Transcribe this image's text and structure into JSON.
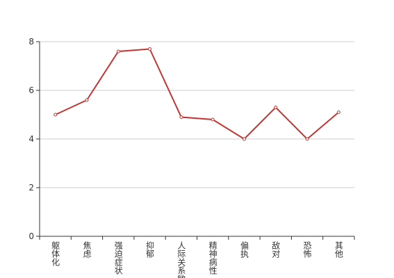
{
  "chart_data": {
    "type": "line",
    "categories": [
      "躯体化",
      "焦虑",
      "强迫症状",
      "抑郁",
      "人际关系敏感",
      "精神病性",
      "偏执",
      "敌对",
      "恐怖",
      "其他"
    ],
    "series": [
      {
        "color": "#c23531",
        "values": [
          5.0,
          5.6,
          7.6,
          7.7,
          4.9,
          4.8,
          4.0,
          5.3,
          4.0,
          5.1
        ]
      }
    ],
    "ylim": [
      0,
      8
    ],
    "yticks": [
      0,
      2,
      4,
      6,
      8
    ],
    "grid": true
  }
}
